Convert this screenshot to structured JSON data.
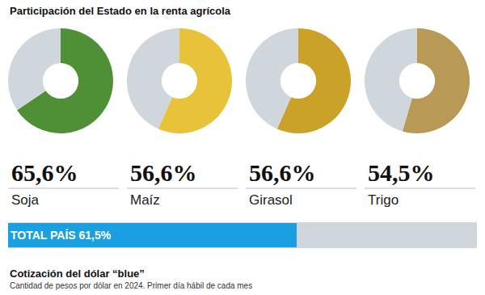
{
  "title": "Participación del Estado en la renta agrícola",
  "chart_data": [
    {
      "type": "pie",
      "title": "Soja",
      "values": [
        65.6,
        34.4
      ],
      "value_labels": [
        "65,6%",
        null
      ],
      "colors": [
        "#4f8f35",
        "#cfd6dc"
      ]
    },
    {
      "type": "pie",
      "title": "Maíz",
      "values": [
        56.6,
        43.4
      ],
      "value_labels": [
        "56,6%",
        null
      ],
      "colors": [
        "#e8c33a",
        "#cfd6dc"
      ]
    },
    {
      "type": "pie",
      "title": "Girasol",
      "values": [
        56.6,
        43.4
      ],
      "value_labels": [
        "56,6%",
        null
      ],
      "colors": [
        "#c9a227",
        "#cfd6dc"
      ]
    },
    {
      "type": "pie",
      "title": "Trigo",
      "values": [
        54.5,
        45.5
      ],
      "value_labels": [
        "54,5%",
        null
      ],
      "colors": [
        "#b89a56",
        "#cfd6dc"
      ]
    },
    {
      "type": "bar",
      "orientation": "horizontal",
      "categories": [
        "TOTAL PAÍS"
      ],
      "values": [
        61.5
      ],
      "value_labels": [
        "61,5%"
      ],
      "color": "#1a9fe0",
      "xlim": [
        0,
        100
      ],
      "tick_labels": false,
      "data_labels": true
    }
  ],
  "footer": {
    "title": "Cotización del dólar “blue”",
    "subtitle": "Cantidad de pesos por dólar en 2024. Primer día hábil de cada mes"
  }
}
